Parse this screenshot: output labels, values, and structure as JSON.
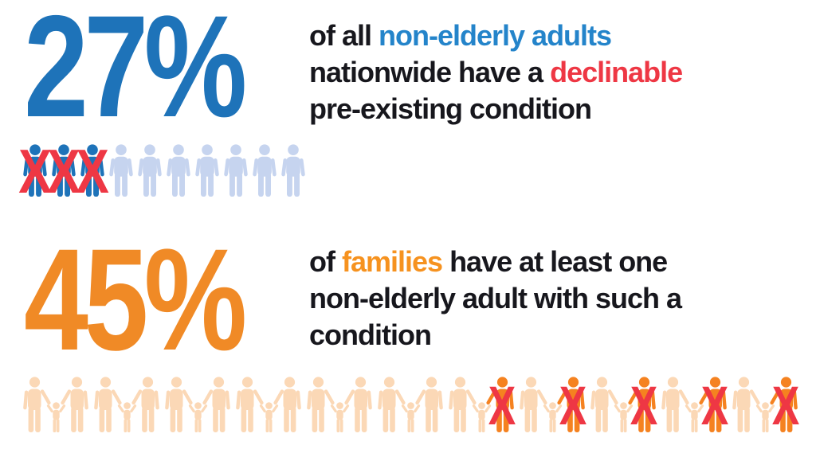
{
  "palette": {
    "blue": "#1e73b9",
    "blue_text": "#2484ca",
    "light_blue": "#c6d4ef",
    "red": "#ee3744",
    "orange": "#f08a26",
    "orange_text": "#f6921f",
    "light_orange": "#fbd8b6",
    "dark_orange": "#f58220",
    "text_dark": "#17171d"
  },
  "chart_data": [
    {
      "type": "pictograph",
      "title": "",
      "value_label": "27%",
      "value": 27,
      "unit": "percent",
      "caption": "of all non-elderly adults nationwide have a declinable pre-existing condition",
      "highlighted_words": [
        {
          "text": "non-elderly adults",
          "color": "#2484ca"
        },
        {
          "text": "declinable",
          "color": "#ee3744"
        }
      ],
      "icons_total": 10,
      "icons_crossed": 3,
      "icon_type": "person",
      "crossed_position": "first"
    },
    {
      "type": "pictograph",
      "title": "",
      "value_label": "45%",
      "value": 45,
      "unit": "percent",
      "caption": "of families have at least one non-elderly adult with such a condition",
      "highlighted_words": [
        {
          "text": "families",
          "color": "#f6921f"
        }
      ],
      "icons_total": 11,
      "icons_crossed": 5,
      "icon_type": "family",
      "crossed_position": "last"
    }
  ],
  "stat_top": {
    "value": "27%",
    "line1_prefix": "of all ",
    "line1_highlight": "non-elderly adults",
    "line2_prefix": "nationwide have a ",
    "line2_highlight": "declinable",
    "line3": "pre-existing condition",
    "icons": {
      "total": 10,
      "crossed": 3,
      "cross_glyph": "X"
    }
  },
  "stat_bottom": {
    "value": "45%",
    "line1_prefix": "of ",
    "line1_highlight": "families",
    "line1_suffix": " have at least one",
    "line2": "non-elderly adult with such a",
    "line3": "condition",
    "icons": {
      "total": 11,
      "crossed": 5,
      "cross_glyph": "X"
    }
  }
}
